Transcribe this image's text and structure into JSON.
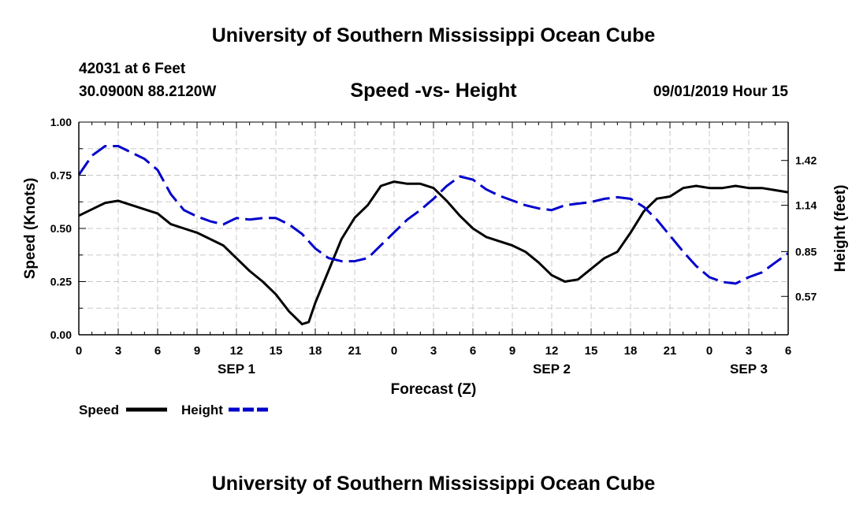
{
  "header": {
    "title": "University of Southern Mississippi Ocean Cube",
    "station": "42031 at 6 Feet",
    "location": "30.0900N 88.2120W",
    "chart_title": "Speed -vs- Height",
    "timestamp": "09/01/2019 Hour 15"
  },
  "footer": {
    "title": "University of Southern Mississippi Ocean Cube"
  },
  "colors": {
    "speed": "#000000",
    "height": "#0000cc",
    "grid": "#c8c8c8"
  },
  "chart_data": {
    "type": "line",
    "title": "Speed -vs- Height",
    "xlabel": "Forecast (Z)",
    "ylabel": "Speed (Knots)",
    "y2label": "Height (feet)",
    "xlim": [
      0,
      54
    ],
    "ylim": [
      0,
      1
    ],
    "y2lim": [
      0.33,
      1.66
    ],
    "x_tick_values": [
      0,
      3,
      6,
      9,
      12,
      15,
      18,
      21,
      24,
      27,
      30,
      33,
      36,
      39,
      42,
      45,
      48,
      51,
      54
    ],
    "x_tick_labels": [
      "0",
      "3",
      "6",
      "9",
      "12",
      "15",
      "18",
      "21",
      "0",
      "3",
      "6",
      "9",
      "12",
      "15",
      "18",
      "21",
      "0",
      "3",
      "6"
    ],
    "y_ticks": [
      0.0,
      0.25,
      0.5,
      0.75,
      1.0
    ],
    "y_tick_labels": [
      "0.00",
      "0.25",
      "0.50",
      "0.75",
      "1.00"
    ],
    "y2_ticks": [
      0.57,
      0.85,
      1.14,
      1.42
    ],
    "y2_tick_labels": [
      "0.57",
      "0.85",
      "1.14",
      "1.42"
    ],
    "day_labels": [
      {
        "x": 12,
        "label": "SEP 1"
      },
      {
        "x": 36,
        "label": "SEP 2"
      },
      {
        "x": 51,
        "label": "SEP 3"
      }
    ],
    "legend": [
      {
        "name": "Speed",
        "style": "solid"
      },
      {
        "name": "Height",
        "style": "dashed"
      }
    ],
    "series": [
      {
        "name": "Speed",
        "axis": "left",
        "x": [
          0,
          1,
          2,
          3,
          4,
          5,
          6,
          7,
          8,
          9,
          10,
          11,
          12,
          13,
          14,
          15,
          16,
          17,
          17.5,
          18,
          19,
          20,
          21,
          22,
          23,
          24,
          25,
          26,
          27,
          28,
          29,
          30,
          31,
          32,
          33,
          34,
          35,
          36,
          37,
          38,
          39,
          40,
          41,
          42,
          43,
          44,
          45,
          46,
          47,
          48,
          49,
          50,
          51,
          52,
          53,
          54
        ],
        "values": [
          0.56,
          0.59,
          0.62,
          0.63,
          0.61,
          0.59,
          0.57,
          0.52,
          0.5,
          0.48,
          0.45,
          0.42,
          0.36,
          0.3,
          0.25,
          0.19,
          0.11,
          0.05,
          0.06,
          0.15,
          0.3,
          0.45,
          0.55,
          0.61,
          0.7,
          0.72,
          0.71,
          0.71,
          0.69,
          0.63,
          0.56,
          0.5,
          0.46,
          0.44,
          0.42,
          0.39,
          0.34,
          0.28,
          0.25,
          0.26,
          0.31,
          0.36,
          0.39,
          0.48,
          0.58,
          0.64,
          0.65,
          0.69,
          0.7,
          0.69,
          0.69,
          0.7,
          0.69,
          0.69,
          0.68,
          0.67
        ]
      },
      {
        "name": "Height",
        "axis": "right",
        "x": [
          0,
          1,
          2,
          3,
          4,
          5,
          6,
          7,
          8,
          9,
          10,
          11,
          12,
          13,
          14,
          15,
          16,
          17,
          18,
          19,
          20,
          21,
          22,
          23,
          24,
          25,
          26,
          27,
          28,
          29,
          30,
          31,
          32,
          33,
          34,
          35,
          36,
          37,
          38,
          39,
          40,
          41,
          42,
          43,
          44,
          45,
          46,
          47,
          48,
          49,
          50,
          51,
          52,
          53,
          54
        ],
        "values": [
          1.33,
          1.45,
          1.51,
          1.51,
          1.47,
          1.43,
          1.36,
          1.21,
          1.11,
          1.07,
          1.04,
          1.02,
          1.06,
          1.05,
          1.06,
          1.06,
          1.02,
          0.96,
          0.87,
          0.81,
          0.79,
          0.79,
          0.81,
          0.89,
          0.97,
          1.05,
          1.11,
          1.18,
          1.26,
          1.32,
          1.3,
          1.24,
          1.2,
          1.17,
          1.14,
          1.12,
          1.11,
          1.14,
          1.15,
          1.16,
          1.18,
          1.19,
          1.18,
          1.13,
          1.05,
          0.95,
          0.85,
          0.76,
          0.69,
          0.66,
          0.65,
          0.69,
          0.72,
          0.78,
          0.84
        ]
      }
    ]
  }
}
